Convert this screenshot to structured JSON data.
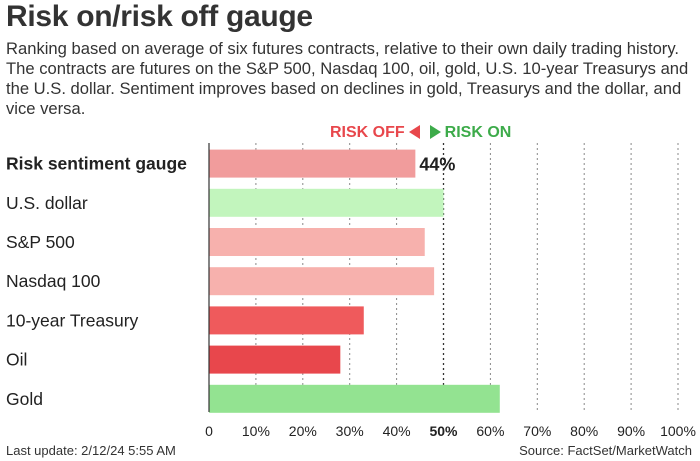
{
  "title": "Risk on/risk off gauge",
  "subtitle": "Ranking based on average of six futures contracts, relative to their own daily trading history. The contracts are futures on the S&P 500, Nasdaq 100, oil, gold, U.S. 10-year Treasurys and the U.S. dollar. Sentiment improves based on declines in gold, Treasurys and the dollar, and vice versa.",
  "legend": {
    "off_label": "RISK OFF",
    "on_label": "RISK ON"
  },
  "footer": {
    "updated": "Last update: 2/12/24 5:55 AM",
    "source": "Source: FactSet/MarketWatch"
  },
  "colors": {
    "gauge": "#f19c9c",
    "risk_on_light": "#c2f5bd",
    "risk_on": "#93e391",
    "risk_off_light": "#f7b1ad",
    "risk_off_mid": "#ef5a5c",
    "risk_off_strong": "#e8474c",
    "axis": "#333333"
  },
  "chart_data": {
    "type": "bar",
    "orientation": "horizontal",
    "categories": [
      "Risk sentiment gauge",
      "U.S. dollar",
      "S&P 500",
      "Nasdaq 100",
      "10-year Treasury",
      "Oil",
      "Gold"
    ],
    "values": [
      44,
      50,
      46,
      48,
      33,
      28,
      62
    ],
    "bar_colors": [
      "#f19c9c",
      "#c2f5bd",
      "#f7b1ad",
      "#f7b1ad",
      "#ef5a5c",
      "#e8474c",
      "#93e391"
    ],
    "bold_categories": [
      "Risk sentiment gauge"
    ],
    "data_labels": [
      {
        "category": "Risk sentiment gauge",
        "text": "44%"
      }
    ],
    "xlim": [
      0,
      100
    ],
    "xticks": [
      "0",
      "10%",
      "20%",
      "30%",
      "40%",
      "50%",
      "60%",
      "70%",
      "80%",
      "90%",
      "100%"
    ],
    "highlighted_tick": "50%",
    "grid": "vertical dotted"
  }
}
